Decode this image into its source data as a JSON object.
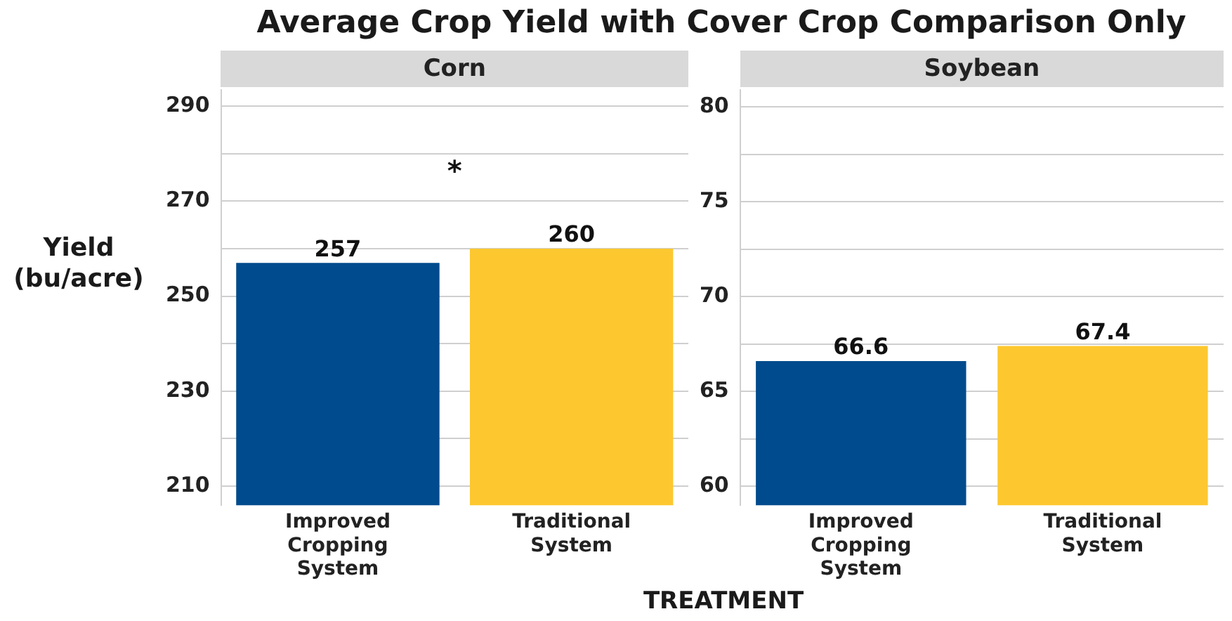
{
  "chart_data": [
    {
      "type": "bar",
      "title": "Average Crop Yield with Cover Crop Comparison Only",
      "subtitle": "Corn",
      "ylabel": "Yield (bu/acre)",
      "xlabel": "TREATMENT",
      "categories": [
        "Improved Cropping System",
        "Traditional System"
      ],
      "values": [
        257,
        260
      ],
      "colors": [
        "#004b8d",
        "#fdc82f"
      ],
      "data_labels": true,
      "ylim": [
        206,
        293.4
      ],
      "yticks": [
        210,
        {
          "value": 220,
          "label": null
        },
        230,
        {
          "value": 240,
          "label": null
        },
        250,
        {
          "value": 260,
          "label": null
        },
        270,
        {
          "value": 280,
          "label": null
        },
        290
      ],
      "grid": "y",
      "annotations": [
        "*"
      ]
    },
    {
      "type": "bar",
      "subtitle": "Soybean",
      "categories": [
        "Improved Cropping System",
        "Traditional System"
      ],
      "values": [
        66.6,
        67.4
      ],
      "colors": [
        "#004b8d",
        "#fdc82f"
      ],
      "data_labels": true,
      "ylim": [
        59,
        80.9
      ],
      "yticks": [
        60,
        {
          "value": 62.5,
          "label": null
        },
        65,
        {
          "value": 67.5,
          "label": null
        },
        70,
        {
          "value": 72.5,
          "label": null
        },
        75,
        {
          "value": 77.5,
          "label": null
        },
        80
      ],
      "grid": "y"
    }
  ]
}
